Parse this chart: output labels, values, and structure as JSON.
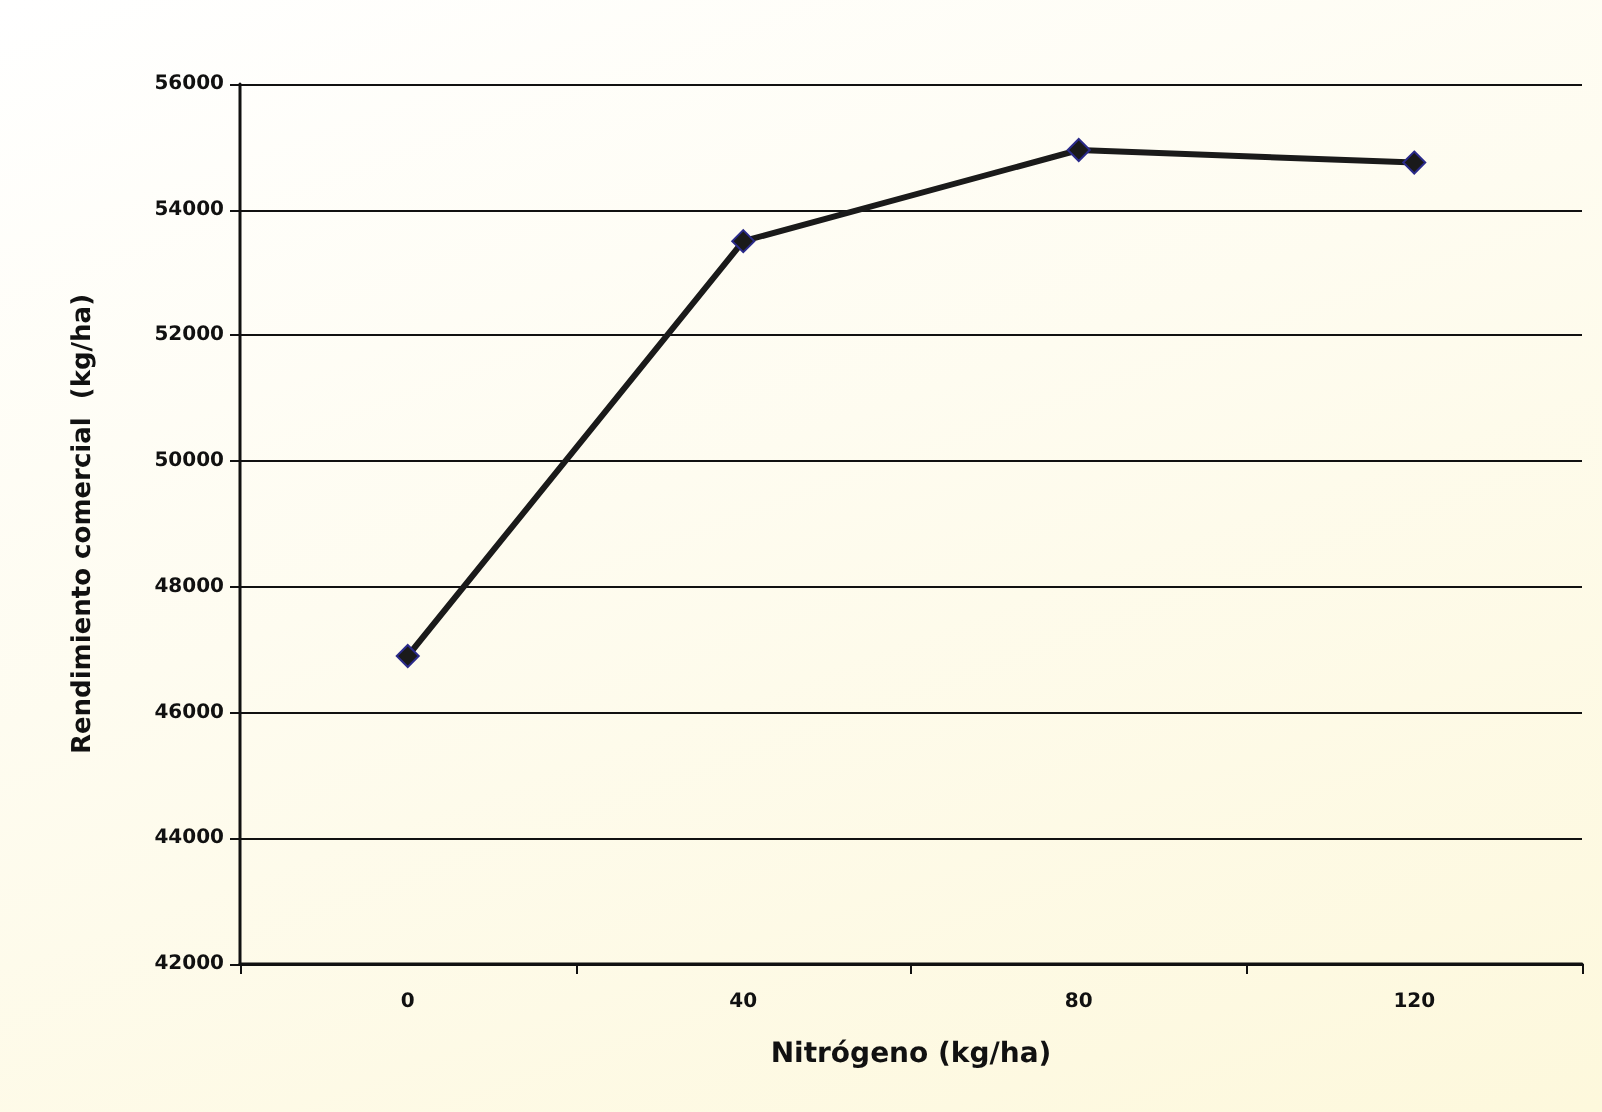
{
  "chart_data": {
    "type": "line",
    "xlabel": "Nitrógeno (kg/ha)",
    "ylabel": "Rendimiento comercial  (kg/ha)",
    "categories": [
      "0",
      "40",
      "80",
      "120"
    ],
    "series": [
      {
        "color": "#1a1a1a",
        "values": [
          46900,
          53500,
          54950,
          54750
        ]
      }
    ],
    "ylim": [
      42000,
      56000
    ],
    "yticks": [
      42000,
      44000,
      46000,
      48000,
      50000,
      52000,
      54000,
      56000
    ],
    "grid": "y",
    "marker": "diamond",
    "line_style": "solid"
  }
}
